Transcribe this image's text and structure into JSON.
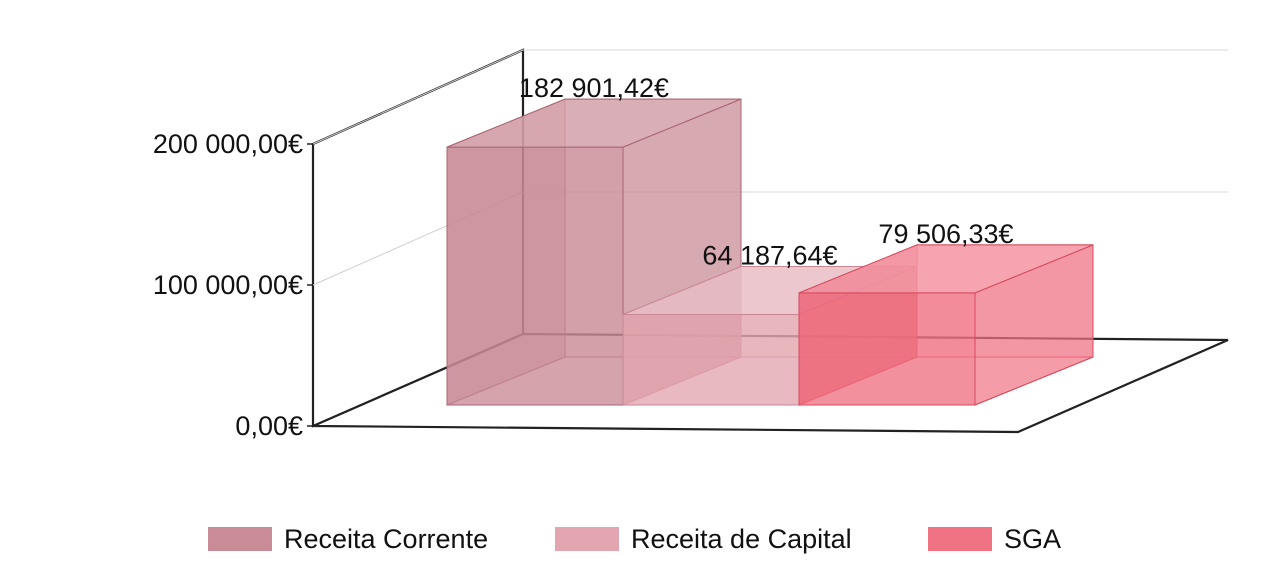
{
  "chart_data": {
    "type": "bar",
    "categories": [
      ""
    ],
    "series": [
      {
        "name": "Receita Corrente",
        "values": [
          182901.42
        ],
        "value_label": "182 901,42€",
        "color": "#c98b96"
      },
      {
        "name": "Receita de Capital",
        "values": [
          64187.64
        ],
        "value_label": "64 187,64€",
        "color": "#e3a6b0"
      },
      {
        "name": "SGA",
        "values": [
          79506.33
        ],
        "value_label": "79 506,33€",
        "color": "#f07384"
      }
    ],
    "yticks": [
      {
        "value": 0,
        "label": "0,00€"
      },
      {
        "value": 100000,
        "label": "100 000,00€"
      },
      {
        "value": 200000,
        "label": "200 000,00€"
      }
    ],
    "ylim": [
      0,
      200000
    ],
    "title": "",
    "xlabel": "",
    "ylabel": "",
    "grid": true,
    "legend": "bottom",
    "projection": "3d"
  }
}
